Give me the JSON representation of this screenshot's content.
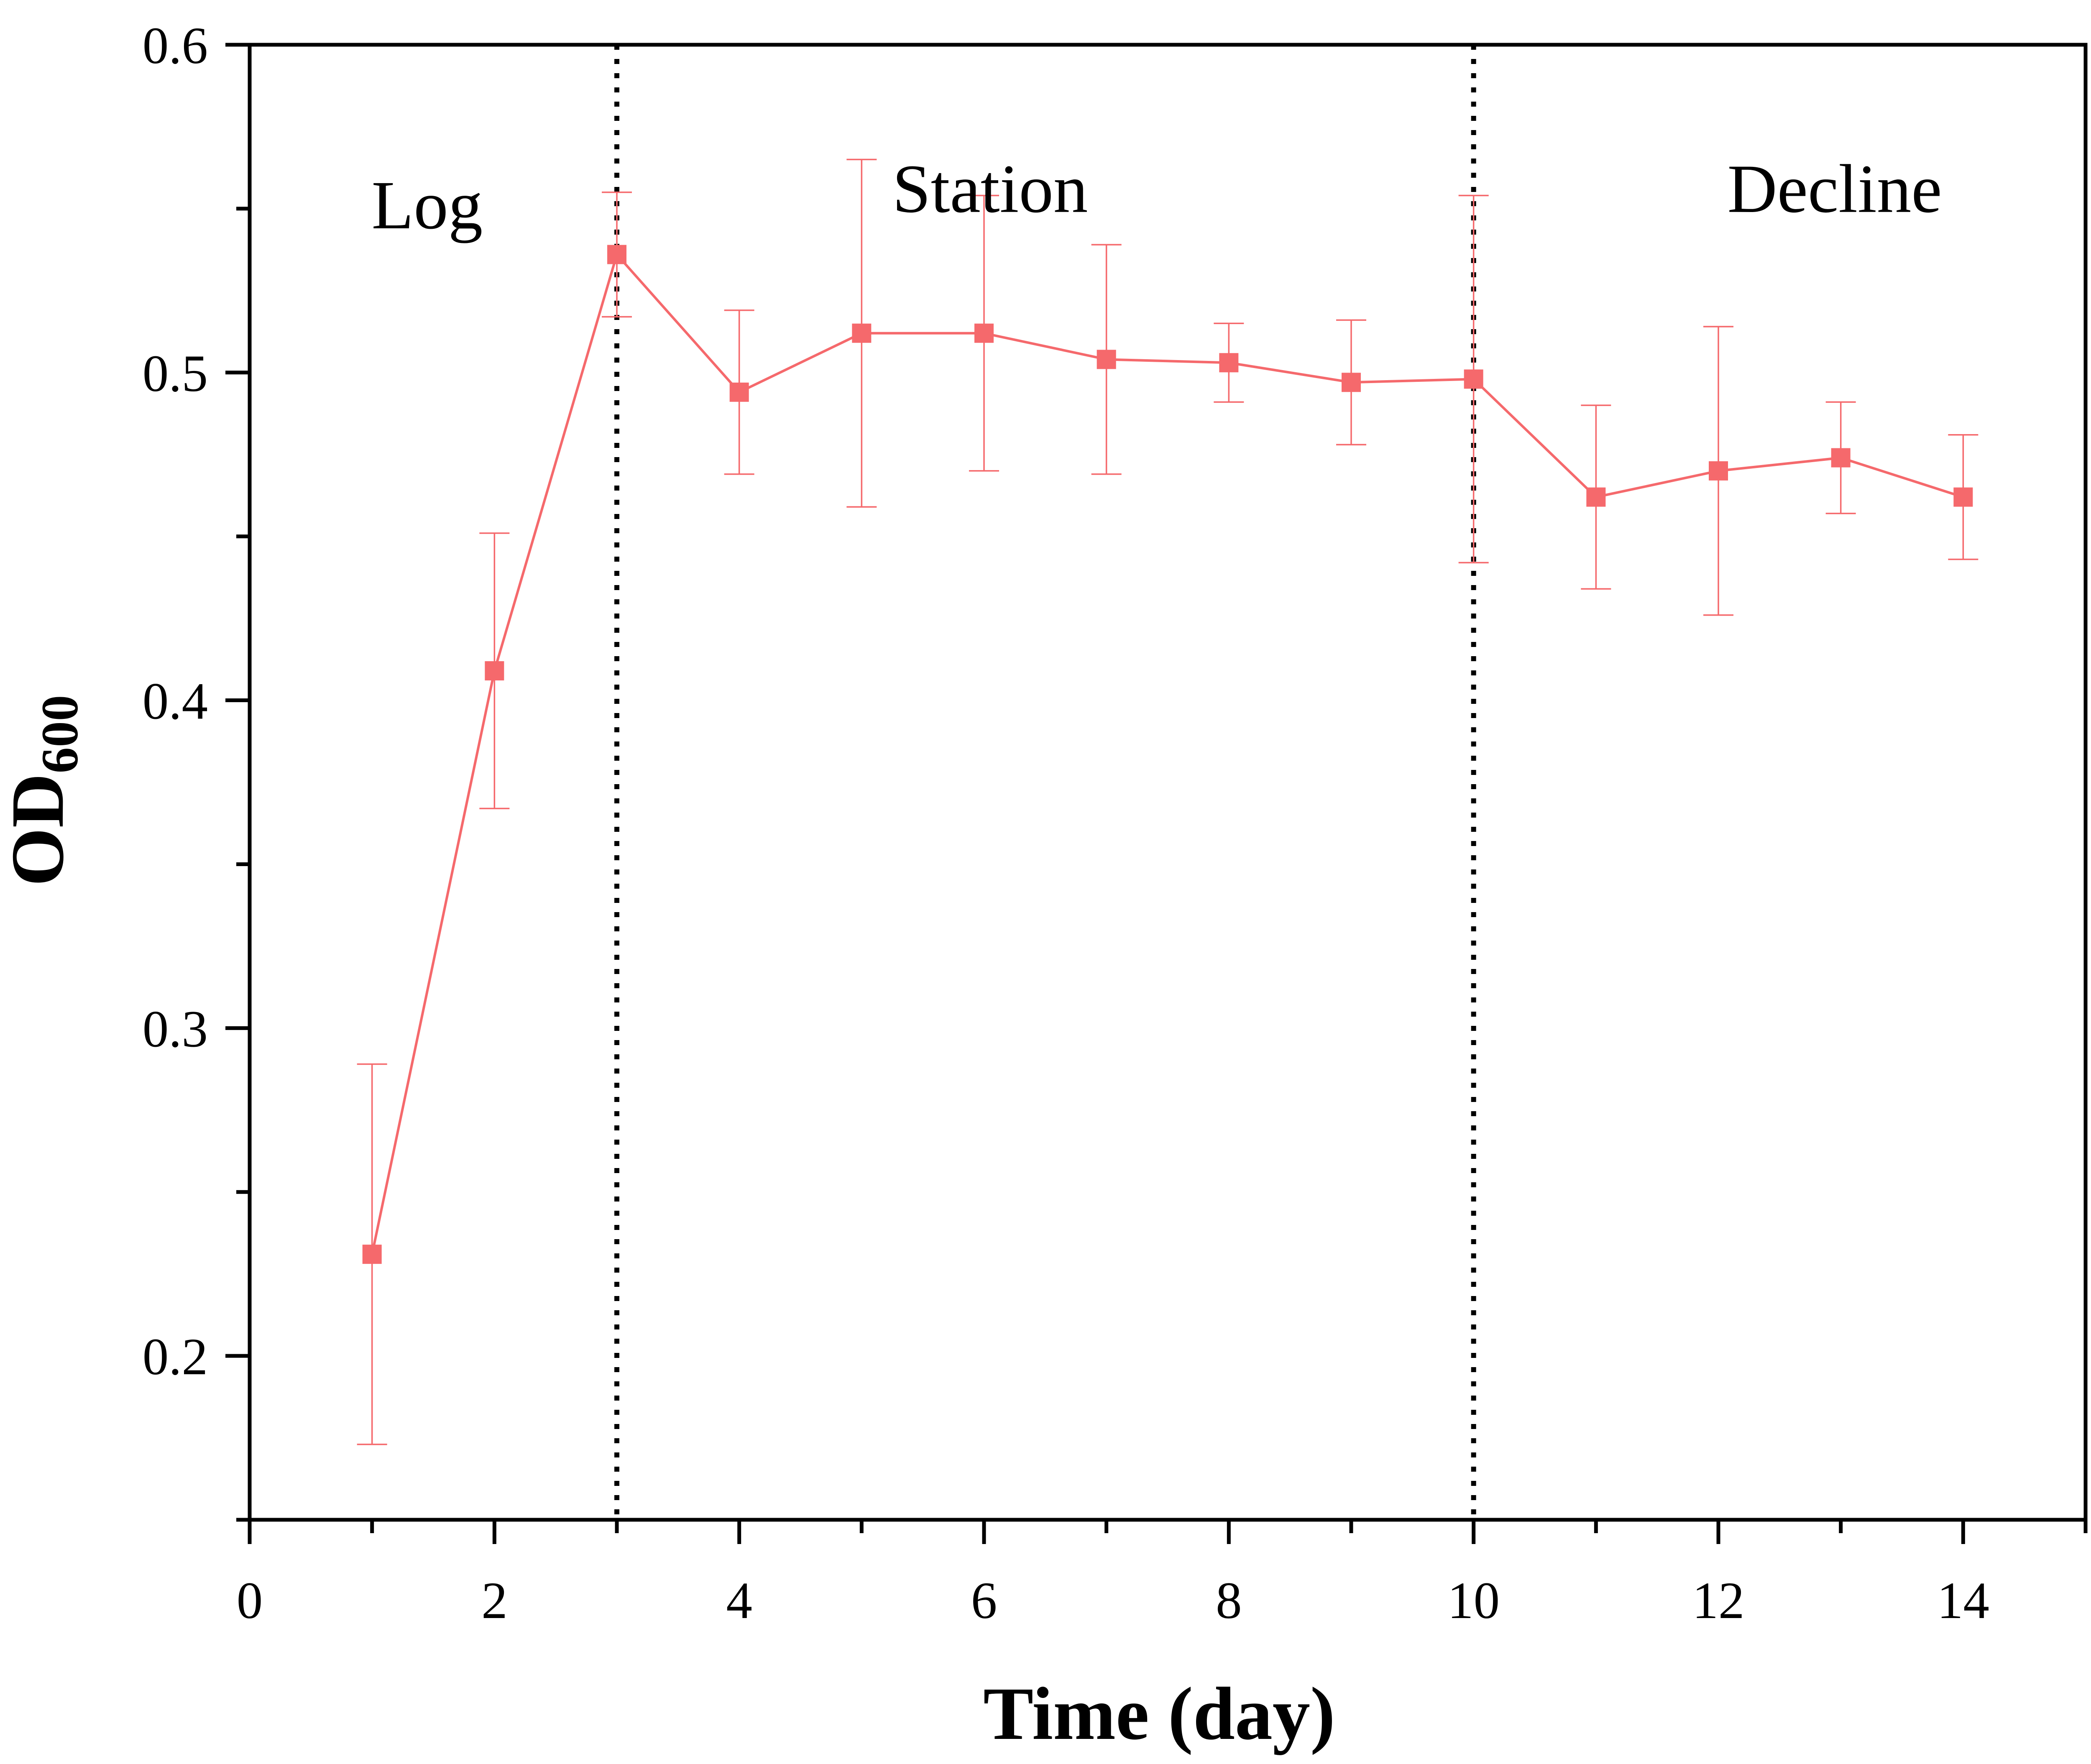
{
  "chart_data": {
    "type": "line",
    "xlabel": "Time (day)",
    "ylabel": {
      "main": "OD",
      "subscript": "600"
    },
    "xlim": [
      0,
      15
    ],
    "ylim": [
      0.15,
      0.6
    ],
    "x_ticks": [
      0,
      2,
      4,
      6,
      8,
      10,
      12,
      14
    ],
    "x_minor_ticks": [
      1,
      3,
      5,
      7,
      9,
      11,
      13,
      15
    ],
    "y_ticks": [
      0.2,
      0.3,
      0.4,
      0.5,
      0.6
    ],
    "y_tick_labels": [
      "0.2",
      "0.3",
      "0.4",
      "0.5",
      "0.6"
    ],
    "y_minor_ticks": [
      0.15,
      0.25,
      0.35,
      0.45,
      0.55
    ],
    "grid": false,
    "legend": "none",
    "marker": "square",
    "color": "#F5696C",
    "series": [
      {
        "x": [
          1,
          2,
          3,
          4,
          5,
          6,
          7,
          8,
          9,
          10,
          11,
          12,
          13,
          14
        ],
        "values": [
          0.231,
          0.409,
          0.536,
          0.494,
          0.512,
          0.512,
          0.504,
          0.503,
          0.497,
          0.498,
          0.462,
          0.47,
          0.474,
          0.462
        ],
        "error": [
          0.058,
          0.042,
          0.019,
          0.025,
          0.053,
          0.042,
          0.035,
          0.012,
          0.019,
          0.056,
          0.028,
          0.044,
          0.017,
          0.019
        ]
      }
    ],
    "phase_lines_x": [
      3,
      10
    ],
    "phases": [
      {
        "label": "Log",
        "x": 1.45,
        "y": 0.544
      },
      {
        "label": "Station",
        "x": 6.05,
        "y": 0.549
      },
      {
        "label": "Decline",
        "x": 12.95,
        "y": 0.549
      }
    ]
  }
}
